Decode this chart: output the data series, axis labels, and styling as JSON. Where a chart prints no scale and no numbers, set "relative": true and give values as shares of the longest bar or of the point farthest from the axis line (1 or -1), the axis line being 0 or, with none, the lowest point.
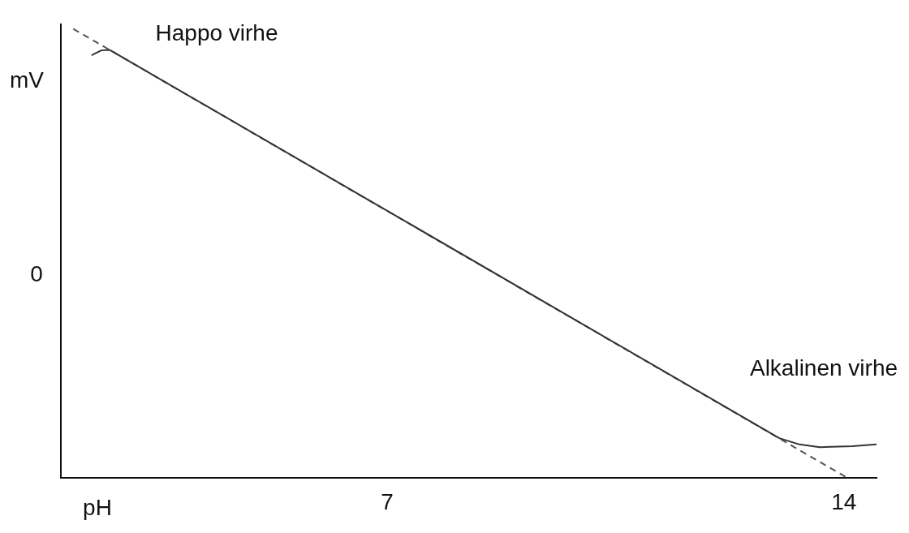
{
  "chart_data": {
    "type": "line",
    "relative": true,
    "xlabel": "pH",
    "ylabel": "mV",
    "xlim": [
      2,
      14.5
    ],
    "xticks": [
      7,
      14
    ],
    "grid": false,
    "legend": false,
    "marker": "none",
    "annotations": [
      "0",
      "Happo virhe",
      "Alkalinen virhe"
    ],
    "series": [
      {
        "color": "#333333",
        "line_style": "solid",
        "x": [
          2.47,
          2.62,
          2.75,
          13.01,
          13.32,
          13.63,
          14.13,
          14.5
        ],
        "values": [
          0.941,
          0.952,
          0.953,
          0.089,
          0.075,
          0.069,
          0.071,
          0.075
        ]
      },
      {
        "color": "#555555",
        "line_style": "dashed",
        "x": [
          2.19,
          14.06
        ],
        "values": [
          1.0,
          0
        ]
      }
    ]
  }
}
